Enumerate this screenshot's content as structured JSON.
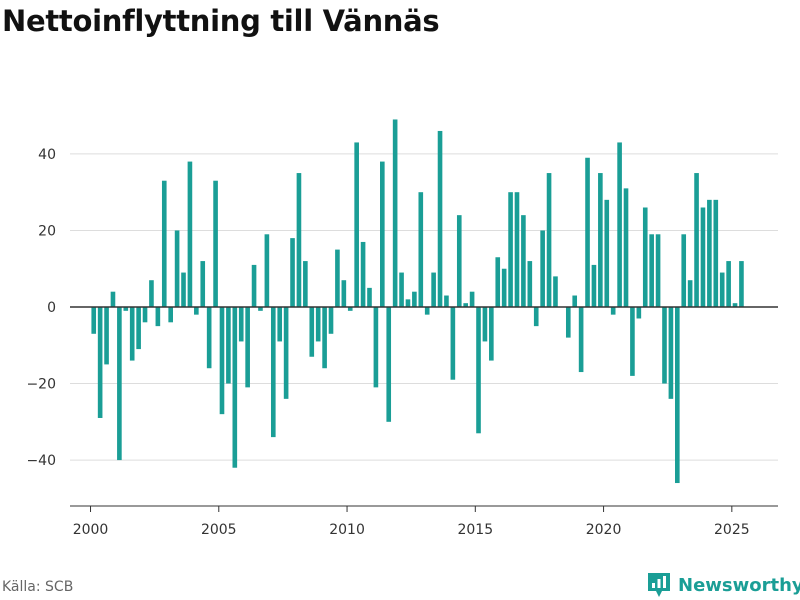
{
  "chart_data": {
    "type": "bar",
    "title": "Nettoinflyttning till Vännäs",
    "xlabel": "",
    "ylabel": "",
    "xlim": [
      1999.2,
      2026.8
    ],
    "ylim": [
      -52,
      52
    ],
    "yticks": [
      -40,
      -20,
      0,
      20,
      40
    ],
    "xticks": [
      2000,
      2005,
      2010,
      2015,
      2020,
      2025
    ],
    "grid": true,
    "bar_color": "#1a9e96",
    "series": [
      {
        "frequency": "quarterly",
        "start": "2000 Q1",
        "values": [
          -7,
          -29,
          -15,
          4,
          -40,
          -1,
          -14,
          -11,
          -4,
          7,
          -5,
          33,
          -4,
          20,
          9,
          38,
          -2,
          12,
          -16,
          33,
          -28,
          -20,
          -42,
          -9,
          -21,
          11,
          -1,
          19,
          -34,
          -9,
          -24,
          18,
          35,
          12,
          -13,
          -9,
          -16,
          -7,
          15,
          7,
          -1,
          43,
          17,
          5,
          -21,
          38,
          -30,
          49,
          9,
          2,
          4,
          30,
          -2,
          9,
          46,
          3,
          -19,
          24,
          1,
          4,
          -33,
          -9,
          -14,
          13,
          10,
          30,
          30,
          24,
          12,
          -5,
          20,
          35,
          8,
          0,
          -8,
          3,
          -17,
          39,
          11,
          35,
          28,
          -2,
          43,
          31,
          -18,
          -3,
          26,
          19,
          19,
          -20,
          -24,
          -46,
          19,
          7,
          35,
          26,
          28,
          28,
          9,
          12,
          1,
          12
        ]
      }
    ]
  },
  "footer": {
    "source": "Källa: SCB",
    "brand": "Newsworthy"
  },
  "colors": {
    "bar": "#1a9e96",
    "brand": "#1a9e96",
    "grid": "#dddddd",
    "zero_line": "#333333"
  }
}
